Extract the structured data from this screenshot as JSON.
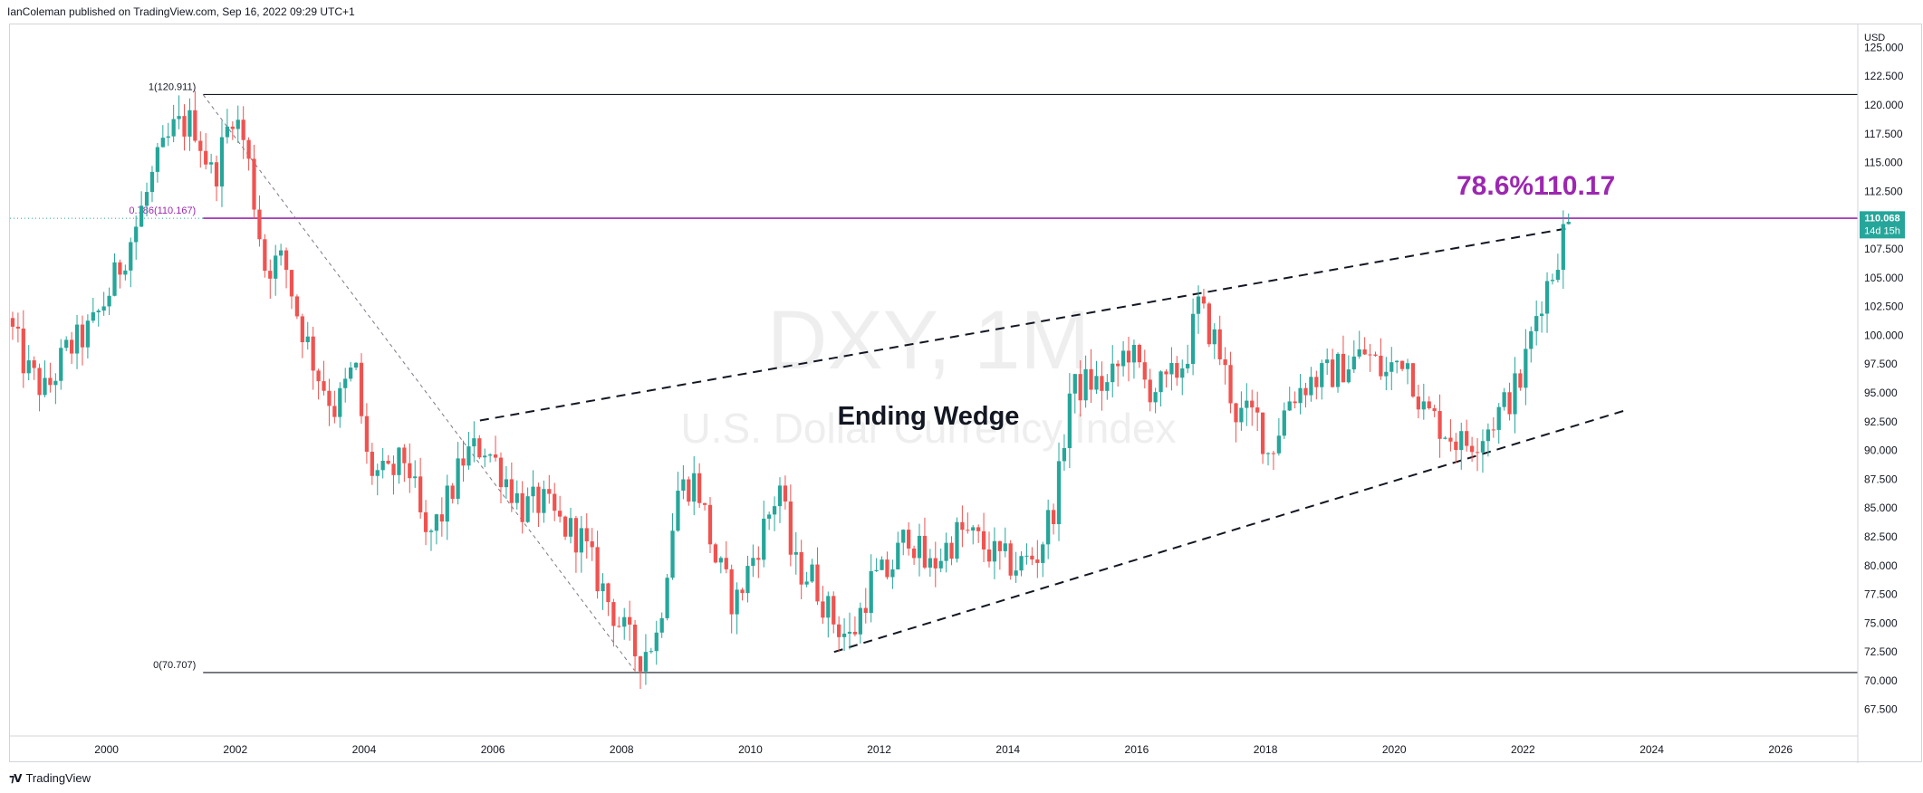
{
  "header": {
    "publisher_line": "IanColeman published on TradingView.com, Sep 16, 2022 09:29 UTC+1"
  },
  "branding": {
    "logo_icon": "tradingview-logo-icon",
    "label": "TradingView"
  },
  "watermark": {
    "symbol": "DXY, 1M",
    "name": "U.S. Dollar Currency Index"
  },
  "colors": {
    "up": "#26a69a",
    "down": "#ef5350",
    "fib_line": "#9c27b0",
    "fib_text": "#9c27b0",
    "price_label_bg": "#26a69a",
    "level_line": "#131722",
    "watermark": "rgba(120,123,134,0.15)"
  },
  "chart_data": {
    "type": "candlestick",
    "title": "Ending Wedge",
    "currency": "USD",
    "timeframe": "1M",
    "xlim": [
      1998.5,
      2027.2
    ],
    "ylim": [
      65.2,
      127.0
    ],
    "x_ticks": [
      "2000",
      "2002",
      "2004",
      "2006",
      "2008",
      "2010",
      "2012",
      "2014",
      "2016",
      "2018",
      "2020",
      "2022",
      "2024",
      "2026"
    ],
    "y_ticks": [
      "67.500",
      "70.000",
      "72.500",
      "75.000",
      "77.500",
      "80.000",
      "82.500",
      "85.000",
      "87.500",
      "90.000",
      "92.500",
      "95.000",
      "97.500",
      "100.000",
      "102.500",
      "105.000",
      "107.500",
      "112.500",
      "115.000",
      "117.500",
      "120.000",
      "122.500",
      "125.000"
    ],
    "last_price": {
      "value": "110.068",
      "countdown": "14d 15h"
    },
    "fib_levels": [
      {
        "label": "1(120.911)",
        "value": 120.911,
        "x_start": 2001.5
      },
      {
        "label": "0.786(110.167)",
        "value": 110.167,
        "x_start": 2001.5
      },
      {
        "label": "0(70.707)",
        "value": 70.707,
        "x_start": 2001.5
      }
    ],
    "fib_annotation": {
      "text": "78.6%110.17",
      "x": 2022.2,
      "y": 113.0
    },
    "fib_retracement_line": {
      "from": [
        2001.5,
        120.9
      ],
      "to": [
        2008.2,
        70.9
      ]
    },
    "wedge_upper": {
      "from": [
        2005.8,
        92.6
      ],
      "to": [
        2022.7,
        109.3
      ]
    },
    "wedge_lower": {
      "from": [
        2011.3,
        72.5
      ],
      "to": [
        2023.6,
        93.5
      ]
    },
    "candles_path": [
      [
        1998.5,
        101.5
      ],
      [
        1998.8,
        97.0
      ],
      [
        1999.1,
        95.0
      ],
      [
        1999.4,
        98.5
      ],
      [
        1999.8,
        100.5
      ],
      [
        2000.1,
        104.0
      ],
      [
        2000.5,
        109.5
      ],
      [
        2000.8,
        114.5
      ],
      [
        2001.1,
        118.0
      ],
      [
        2001.4,
        118.5
      ],
      [
        2001.7,
        113.5
      ],
      [
        2002.0,
        119.5
      ],
      [
        2002.2,
        116.5
      ],
      [
        2002.5,
        106.0
      ],
      [
        2002.8,
        106.5
      ],
      [
        2003.0,
        102.0
      ],
      [
        2003.3,
        97.0
      ],
      [
        2003.6,
        93.5
      ],
      [
        2003.9,
        97.5
      ],
      [
        2004.1,
        88.5
      ],
      [
        2004.4,
        87.5
      ],
      [
        2004.7,
        89.5
      ],
      [
        2005.0,
        82.0
      ],
      [
        2005.3,
        85.0
      ],
      [
        2005.6,
        89.5
      ],
      [
        2005.9,
        90.5
      ],
      [
        2006.2,
        88.0
      ],
      [
        2006.5,
        85.0
      ],
      [
        2006.8,
        85.5
      ],
      [
        2007.1,
        83.5
      ],
      [
        2007.4,
        82.5
      ],
      [
        2007.7,
        78.5
      ],
      [
        2008.0,
        75.0
      ],
      [
        2008.3,
        72.0
      ],
      [
        2008.6,
        74.0
      ],
      [
        2008.9,
        86.5
      ],
      [
        2009.2,
        87.5
      ],
      [
        2009.5,
        80.5
      ],
      [
        2009.8,
        76.5
      ],
      [
        2010.2,
        82.5
      ],
      [
        2010.5,
        87.0
      ],
      [
        2010.7,
        80.0
      ],
      [
        2011.0,
        79.0
      ],
      [
        2011.3,
        75.5
      ],
      [
        2011.6,
        73.5
      ],
      [
        2011.9,
        78.5
      ],
      [
        2012.2,
        79.5
      ],
      [
        2012.5,
        83.0
      ],
      [
        2012.8,
        79.5
      ],
      [
        2013.0,
        81.0
      ],
      [
        2013.3,
        83.0
      ],
      [
        2013.6,
        82.0
      ],
      [
        2013.9,
        80.5
      ],
      [
        2014.2,
        80.0
      ],
      [
        2014.5,
        81.0
      ],
      [
        2014.8,
        86.0
      ],
      [
        2015.0,
        95.0
      ],
      [
        2015.3,
        96.0
      ],
      [
        2015.6,
        95.5
      ],
      [
        2015.9,
        99.0
      ],
      [
        2016.2,
        95.5
      ],
      [
        2016.5,
        95.5
      ],
      [
        2016.8,
        98.0
      ],
      [
        2017.0,
        102.5
      ],
      [
        2017.3,
        99.0
      ],
      [
        2017.6,
        93.0
      ],
      [
        2017.9,
        93.0
      ],
      [
        2018.1,
        89.5
      ],
      [
        2018.4,
        94.5
      ],
      [
        2018.7,
        96.0
      ],
      [
        2019.0,
        96.5
      ],
      [
        2019.3,
        97.5
      ],
      [
        2019.6,
        98.5
      ],
      [
        2019.9,
        96.5
      ],
      [
        2020.2,
        98.5
      ],
      [
        2020.5,
        93.5
      ],
      [
        2020.8,
        92.0
      ],
      [
        2021.1,
        90.5
      ],
      [
        2021.4,
        91.5
      ],
      [
        2021.7,
        93.5
      ],
      [
        2022.0,
        96.0
      ],
      [
        2022.3,
        103.0
      ],
      [
        2022.5,
        105.5
      ],
      [
        2022.7,
        109.5
      ]
    ]
  }
}
